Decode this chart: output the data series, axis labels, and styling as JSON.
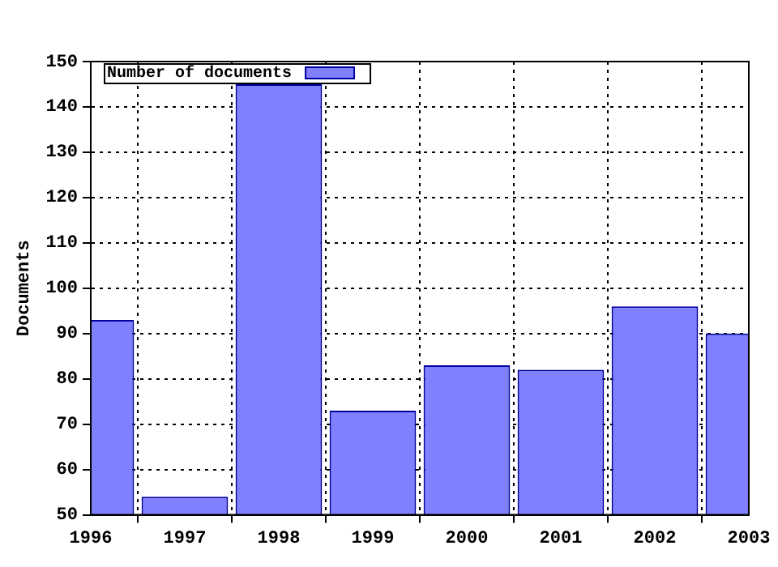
{
  "chart_data": {
    "type": "bar",
    "ylabel": "Documents",
    "x": [
      1996,
      1997,
      1998,
      1999,
      2000,
      2001,
      2002,
      2003
    ],
    "series": [
      {
        "name": "Number of documents",
        "color": "#8080ff",
        "values": [
          93,
          54,
          145,
          73,
          83,
          82,
          96,
          90
        ]
      }
    ],
    "xlim": [
      1996,
      2003
    ],
    "xticks": [
      1996,
      1997,
      1998,
      1999,
      2000,
      2001,
      2002,
      2003
    ],
    "ylim": [
      50,
      150
    ],
    "yticks": [
      50,
      60,
      70,
      80,
      90,
      100,
      110,
      120,
      130,
      140,
      150
    ],
    "grid": true,
    "legend": "top left"
  }
}
